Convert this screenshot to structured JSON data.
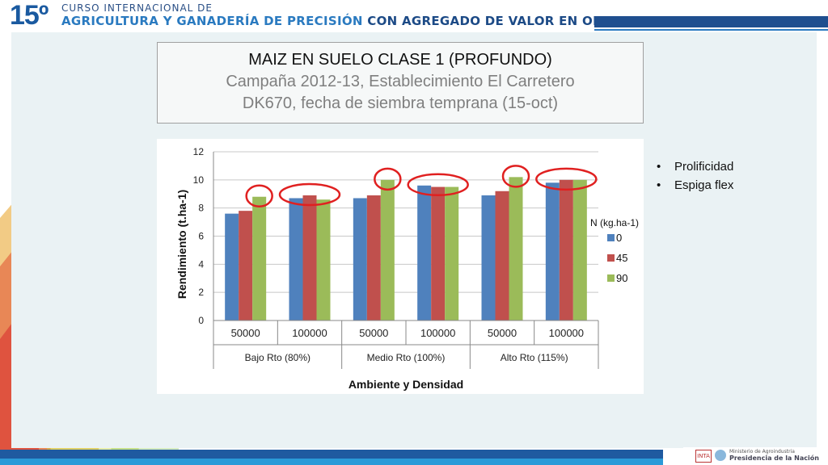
{
  "header": {
    "number": "15º",
    "line1": "CURSO INTERNACIONAL DE",
    "line2_part1": "AGRICULTURA Y GANADERÍA DE PRECISIÓN",
    "line2_part2": "CON AGREGADO DE VALOR EN ORIGEN"
  },
  "title_box": {
    "line1": "MAIZ EN SUELO CLASE 1 (PROFUNDO)",
    "line2": "Campaña 2012-13, Establecimiento El Carretero",
    "line3": "DK670, fecha de siembra temprana (15-oct)"
  },
  "bullets": [
    "Prolificidad",
    "Espiga flex"
  ],
  "footer": {
    "logo_inta": "INTA",
    "logo_line1": "Ministerio de Agroindustria",
    "logo_line2": "Presidencia de la Nación"
  },
  "colors": {
    "series_0": "#4f81bd",
    "series_45": "#c0504d",
    "series_90": "#9bbb59",
    "highlight_ellipse": "#e02020",
    "header_dark_blue": "#1f4f8f"
  },
  "chart_data": {
    "type": "bar",
    "ylabel": "Rendimiento (t.ha-1)",
    "xlabel": "Ambiente y Densidad",
    "ylim": [
      0,
      12
    ],
    "yticks": [
      "0",
      "2",
      "4",
      "6",
      "8",
      "10",
      "12"
    ],
    "grid": true,
    "legend_title": "N (kg.ha-1)",
    "legend_position": "right",
    "categories": [
      "50000",
      "100000",
      "50000",
      "100000",
      "50000",
      "100000"
    ],
    "groups": [
      {
        "label": "Bajo Rto (80%)",
        "span": 2
      },
      {
        "label": "Medio Rto (100%)",
        "span": 2
      },
      {
        "label": "Alto Rto (115%)",
        "span": 2
      }
    ],
    "series": [
      {
        "name": "0",
        "values": [
          7.6,
          8.7,
          8.7,
          9.6,
          8.9,
          9.8
        ]
      },
      {
        "name": "45",
        "values": [
          7.8,
          8.9,
          8.9,
          9.5,
          9.2,
          10.0
        ]
      },
      {
        "name": "90",
        "values": [
          8.8,
          8.6,
          10.0,
          9.5,
          10.2,
          10.0
        ]
      }
    ],
    "highlighted_categories": [
      0,
      1,
      2,
      3,
      4,
      5
    ]
  }
}
